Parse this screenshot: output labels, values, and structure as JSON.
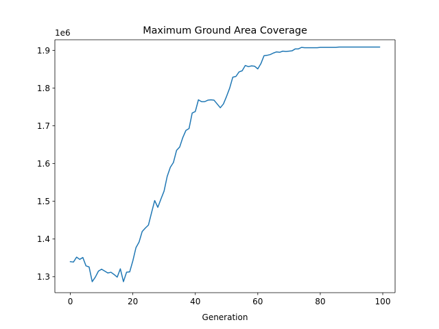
{
  "chart_data": {
    "type": "line",
    "title": "Maximum Ground Area Coverage",
    "xlabel": "Generation",
    "ylabel": "",
    "y_offset_label": "1e6",
    "xlim": [
      -4.95,
      103.95
    ],
    "ylim": [
      1.2578,
      1.9282
    ],
    "xticks": [
      0,
      20,
      40,
      60,
      80,
      100
    ],
    "xtick_labels": [
      "0",
      "20",
      "40",
      "60",
      "80",
      "100"
    ],
    "yticks": [
      1.3,
      1.4,
      1.5,
      1.6,
      1.7,
      1.8,
      1.9
    ],
    "ytick_labels": [
      "1.3",
      "1.4",
      "1.5",
      "1.6",
      "1.7",
      "1.8",
      "1.9"
    ],
    "grid": false,
    "colors": {
      "line": "#1f77b4",
      "axes": "#000000",
      "background": "#ffffff"
    },
    "series": [
      {
        "x": [
          0,
          1,
          2,
          3,
          4,
          5,
          6,
          7,
          8,
          9,
          10,
          11,
          12,
          13,
          14,
          15,
          16,
          17,
          18,
          19,
          20,
          21,
          22,
          23,
          24,
          25,
          26,
          27,
          28,
          29,
          30,
          31,
          32,
          33,
          34,
          35,
          36,
          37,
          38,
          39,
          40,
          41,
          42,
          43,
          44,
          45,
          46,
          47,
          48,
          49,
          50,
          51,
          52,
          53,
          54,
          55,
          56,
          57,
          58,
          59,
          60,
          61,
          62,
          63,
          64,
          65,
          66,
          67,
          68,
          69,
          70,
          71,
          72,
          73,
          74,
          75,
          76,
          77,
          78,
          79,
          80,
          81,
          82,
          83,
          84,
          85,
          86,
          87,
          88,
          89,
          90,
          91,
          92,
          93,
          94,
          95,
          96,
          97,
          98,
          99
        ],
        "values": [
          1.34,
          1.339,
          1.352,
          1.346,
          1.351,
          1.329,
          1.326,
          1.287,
          1.299,
          1.315,
          1.32,
          1.315,
          1.31,
          1.312,
          1.306,
          1.299,
          1.321,
          1.287,
          1.312,
          1.313,
          1.342,
          1.377,
          1.392,
          1.42,
          1.429,
          1.437,
          1.47,
          1.502,
          1.484,
          1.506,
          1.527,
          1.566,
          1.59,
          1.603,
          1.635,
          1.644,
          1.669,
          1.688,
          1.693,
          1.734,
          1.738,
          1.769,
          1.764,
          1.764,
          1.768,
          1.769,
          1.768,
          1.758,
          1.748,
          1.758,
          1.778,
          1.8,
          1.829,
          1.831,
          1.843,
          1.846,
          1.86,
          1.857,
          1.859,
          1.858,
          1.851,
          1.865,
          1.886,
          1.887,
          1.889,
          1.893,
          1.896,
          1.895,
          1.898,
          1.897,
          1.898,
          1.899,
          1.904,
          1.904,
          1.908,
          1.907,
          1.907,
          1.907,
          1.907,
          1.907,
          1.908,
          1.908,
          1.908,
          1.908,
          1.908,
          1.908,
          1.909,
          1.909,
          1.909,
          1.909,
          1.909,
          1.909,
          1.909,
          1.909,
          1.909,
          1.909,
          1.909,
          1.909,
          1.909,
          1.909
        ]
      }
    ]
  }
}
